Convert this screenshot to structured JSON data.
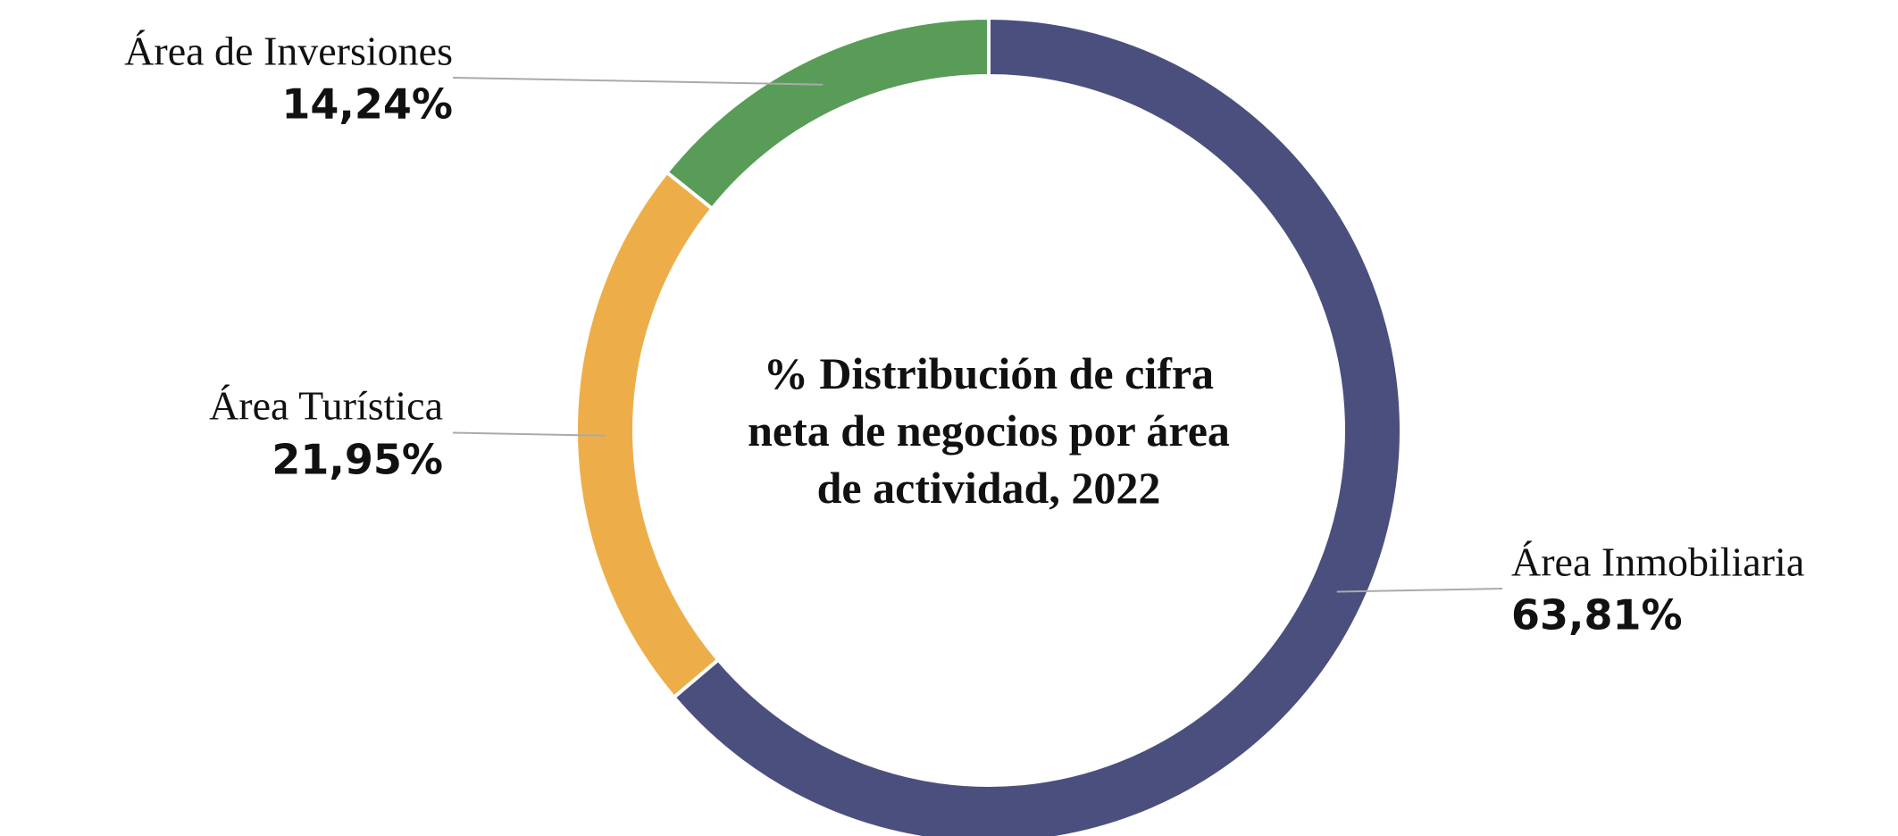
{
  "chart_data": {
    "type": "donut",
    "title": "% Distribución de cifra neta de negocios por área de actividad, 2022",
    "categories": [
      "Área Inmobiliaria",
      "Área Turística",
      "Área de Inversiones"
    ],
    "values": [
      63.81,
      21.95,
      14.24
    ],
    "value_labels": [
      "63,81%",
      "21,95%",
      "14,24%"
    ],
    "colors": [
      "#4a4f7e",
      "#edae4a",
      "#589c58"
    ]
  }
}
